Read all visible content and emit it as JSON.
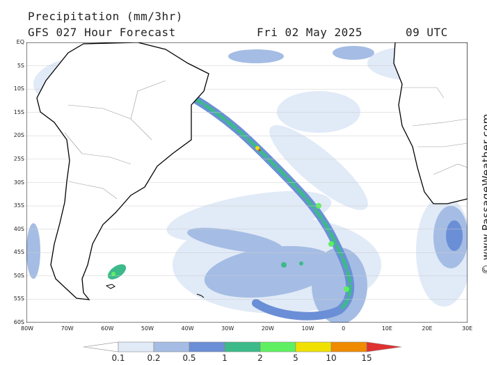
{
  "header": {
    "title": "Precipitation (mm/3hr)",
    "subtitle": "GFS 027 Hour Forecast",
    "date": "Fri 02 May 2025",
    "time": "09 UTC"
  },
  "credit": "© www.PassageWeather.com",
  "map": {
    "lat_labels": [
      "EQ",
      "5S",
      "10S",
      "15S",
      "20S",
      "25S",
      "30S",
      "35S",
      "40S",
      "45S",
      "50S",
      "55S",
      "60S"
    ],
    "lon_labels": [
      "80W",
      "70W",
      "60W",
      "50W",
      "40W",
      "30W",
      "20W",
      "10W",
      "0",
      "10E",
      "20E",
      "30E"
    ]
  },
  "legend": {
    "levels": [
      "0.1",
      "0.2",
      "0.5",
      "1",
      "2",
      "5",
      "10",
      "15"
    ],
    "colors": [
      "#ffffff",
      "#e1eaf7",
      "#a5bde4",
      "#6b8fd6",
      "#3cba8a",
      "#5ef060",
      "#f0e000",
      "#f08a00",
      "#e03030"
    ]
  }
}
